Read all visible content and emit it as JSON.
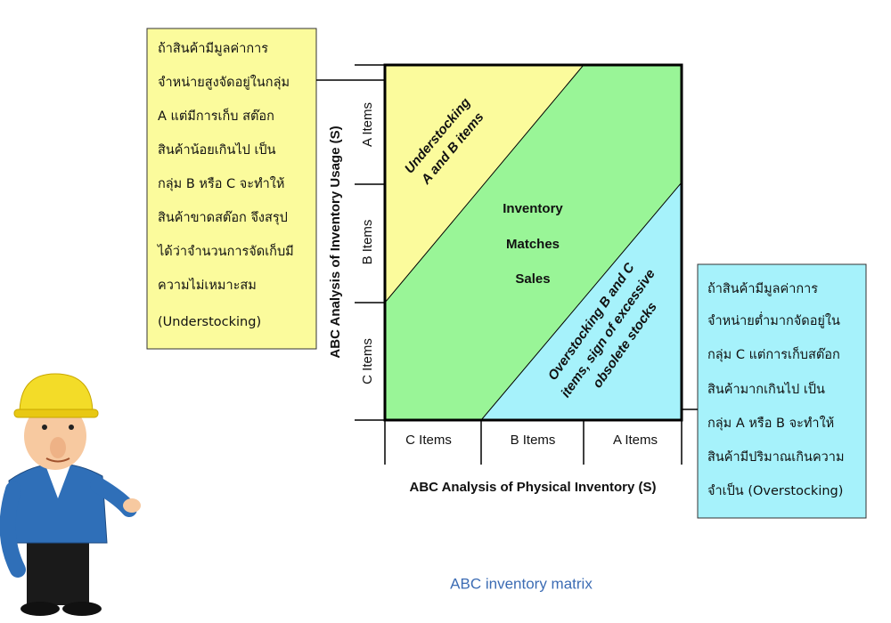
{
  "diagram": {
    "left_note": {
      "lines": [
        "ถ้าสินค้ามีมูลค่าการ",
        "จำหน่ายสูงจัดอยู่ในกลุ่ม",
        "A แต่มีการเก็บ สต๊อก",
        "สินค้าน้อยเกินไป เป็น",
        "กลุ่ม B หรือ C จะทำให้",
        "สินค้าขาดสต๊อก จึงสรุป",
        "ได้ว่าจำนวนการจัดเก็บมี",
        "ความไม่เหมาะสม",
        "(Understocking)"
      ]
    },
    "right_note": {
      "lines": [
        "ถ้าสินค้ามีมูลค่าการ",
        "จำหน่ายต่ำมากจัดอยู่ใน",
        "กลุ่ม C แต่การเก็บสต๊อก",
        "สินค้ามากเกินไป เป็น",
        "กลุ่ม A หรือ B จะทำให้",
        "สินค้ามีปริมาณเกินความ",
        "จำเป็น (Overstocking)"
      ]
    },
    "matrix": {
      "y_axis_title": "ABC Analysis of Inventory Usage (S)",
      "y_categories": [
        "A Items",
        "B Items",
        "C Items"
      ],
      "x_axis_title": "ABC Analysis of Physical Inventory (S)",
      "x_categories": [
        "C Items",
        "B Items",
        "A Items"
      ],
      "regions": {
        "understocking": [
          "Understocking",
          "A and B items"
        ],
        "matches": [
          "Inventory",
          "Matches",
          "Sales"
        ],
        "overstocking": [
          "Overstocking B and C",
          "items, sign of excessive",
          "obsolete stocks"
        ]
      }
    },
    "caption": "ABC inventory matrix"
  }
}
